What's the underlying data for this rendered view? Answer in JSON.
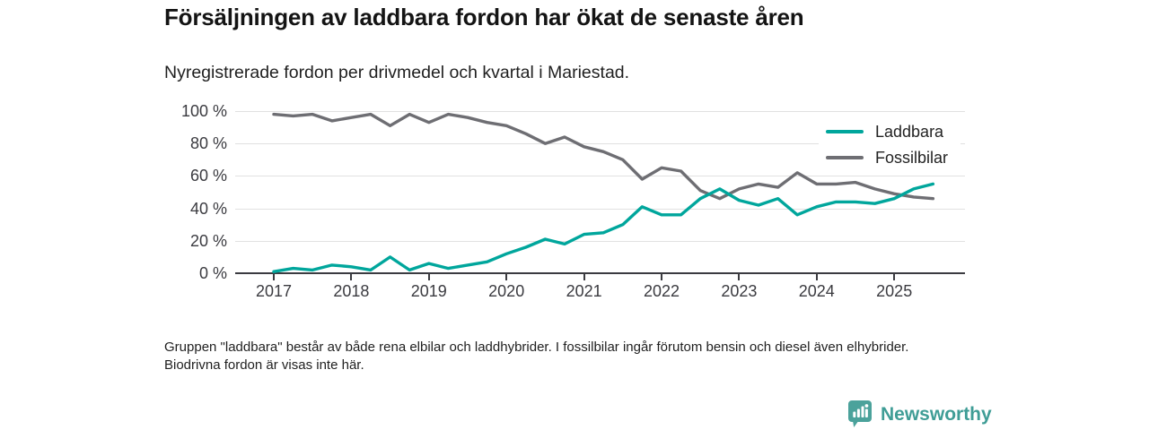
{
  "header": {
    "title": "Försäljningen av laddbara fordon har ökat de senaste åren",
    "subtitle": "Nyregistrerade fordon per drivmedel och kvartal i Mariestad."
  },
  "chart_data": {
    "type": "line",
    "x_unit": "quarter",
    "x_start": "2017 Q1",
    "x_end": "2025 Q3",
    "x_tick_labels": [
      "2017",
      "2018",
      "2019",
      "2020",
      "2021",
      "2022",
      "2023",
      "2024",
      "2025"
    ],
    "y_ticks": [
      0,
      20,
      40,
      60,
      80,
      100
    ],
    "y_tick_labels": [
      "0 %",
      "20 %",
      "40 %",
      "60 %",
      "80 %",
      "100 %"
    ],
    "ylim": [
      0,
      100
    ],
    "grid": "horizontal",
    "legend_position": "top-right",
    "series": [
      {
        "name": "Laddbara",
        "color": "#00a69c",
        "values": [
          1,
          3,
          2,
          5,
          4,
          2,
          10,
          2,
          6,
          3,
          5,
          7,
          12,
          16,
          21,
          18,
          24,
          25,
          30,
          41,
          36,
          36,
          46,
          52,
          45,
          42,
          46,
          36,
          41,
          44,
          44,
          43,
          46,
          52,
          55
        ]
      },
      {
        "name": "Fossilbilar",
        "color": "#6e6e73",
        "values": [
          98,
          97,
          98,
          94,
          96,
          98,
          91,
          98,
          93,
          98,
          96,
          93,
          91,
          86,
          80,
          84,
          78,
          75,
          70,
          58,
          65,
          63,
          51,
          46,
          52,
          55,
          53,
          62,
          55,
          55,
          56,
          52,
          49,
          47,
          46
        ]
      }
    ]
  },
  "footnote": {
    "text": "Gruppen \"laddbara\" består av både rena elbilar och laddhybrider. I fossilbilar ingår förutom bensin och diesel även elhybrider. Biodrivna fordon är visas inte här."
  },
  "branding": {
    "logo_text": "Newsworthy",
    "logo_icon": "bar-chart-speech-bubble-icon",
    "logo_color": "#3f9d96"
  }
}
